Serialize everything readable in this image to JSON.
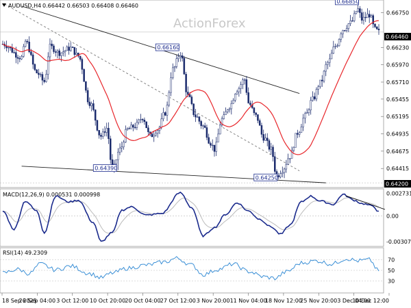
{
  "chart_data": {
    "type": "candlestick",
    "symbol_label": "AUDUSD,H4",
    "ohlc_label": "0.66442 0.66503 0.66408 0.66460",
    "watermark": "ActionForex",
    "price_axis": {
      "min": 0.6415,
      "max": 0.669,
      "ticks": [
        "0.66750",
        "0.66460",
        "0.66230",
        "0.65970",
        "0.65710",
        "0.65455",
        "0.65195",
        "0.64935",
        "0.64675",
        "0.64415",
        "0.64200"
      ]
    },
    "current_price_label": "0.66460",
    "support_label": "0.64200",
    "peak_labels": [
      {
        "text": "0.66160",
        "index": 94,
        "price": 0.6616
      },
      {
        "text": "0.66850",
        "index": 189,
        "price": 0.6685
      },
      {
        "text": "0.64390",
        "index": 61,
        "price": 0.6439
      },
      {
        "text": "0.64250",
        "index": 146,
        "price": 0.6425
      }
    ],
    "time_labels": [
      "18 Sep 2025",
      "26 Sep 04:00",
      "3 Oct 12:00",
      "10 Oct 20:00",
      "20 Oct 04:00",
      "27 Oct 12:00",
      "3 Nov 20:00",
      "11 Nov 04:00",
      "18 Nov 12:00",
      "25 Nov 20:00",
      "3 Dec 04:00",
      "10 Dec 12:00"
    ],
    "anchors": [
      [
        0,
        0.6628
      ],
      [
        10,
        0.6608
      ],
      [
        12,
        0.6632
      ],
      [
        18,
        0.6585
      ],
      [
        22,
        0.6572
      ],
      [
        25,
        0.6624
      ],
      [
        30,
        0.6615
      ],
      [
        36,
        0.6622
      ],
      [
        40,
        0.661
      ],
      [
        46,
        0.654
      ],
      [
        52,
        0.649
      ],
      [
        55,
        0.6502
      ],
      [
        58,
        0.644
      ],
      [
        62,
        0.647
      ],
      [
        66,
        0.65
      ],
      [
        70,
        0.6505
      ],
      [
        74,
        0.6518
      ],
      [
        78,
        0.649
      ],
      [
        82,
        0.65
      ],
      [
        86,
        0.6525
      ],
      [
        90,
        0.659
      ],
      [
        94,
        0.6614
      ],
      [
        98,
        0.655
      ],
      [
        102,
        0.652
      ],
      [
        106,
        0.6505
      ],
      [
        110,
        0.648
      ],
      [
        112,
        0.647
      ],
      [
        116,
        0.6515
      ],
      [
        120,
        0.6535
      ],
      [
        124,
        0.656
      ],
      [
        128,
        0.6575
      ],
      [
        130,
        0.654
      ],
      [
        134,
        0.652
      ],
      [
        138,
        0.6488
      ],
      [
        142,
        0.647
      ],
      [
        145,
        0.643
      ],
      [
        148,
        0.644
      ],
      [
        152,
        0.646
      ],
      [
        156,
        0.6495
      ],
      [
        160,
        0.652
      ],
      [
        164,
        0.6545
      ],
      [
        168,
        0.657
      ],
      [
        172,
        0.66
      ],
      [
        176,
        0.6625
      ],
      [
        180,
        0.665
      ],
      [
        184,
        0.666
      ],
      [
        188,
        0.668
      ],
      [
        190,
        0.6665
      ],
      [
        194,
        0.6672
      ],
      [
        197,
        0.665
      ],
      [
        199,
        0.6646
      ]
    ],
    "candle_count": 200,
    "ma_label": "",
    "trendlines": [
      {
        "from": [
          1,
          0.6688
        ],
        "to": [
          157,
          0.6438
        ],
        "style": "dashed"
      },
      {
        "from": [
          10,
          0.6685
        ],
        "to": [
          157,
          0.6554
        ],
        "style": "solid"
      },
      {
        "from": [
          10,
          0.6445
        ],
        "to": [
          171,
          0.642
        ],
        "style": "solid"
      }
    ],
    "macd": {
      "label": "MACD(12,26,9) 0.000531 0.000998",
      "ticks": [
        "0.002731",
        "0.00",
        "-0.003077"
      ],
      "range": [
        -0.0035,
        0.0031
      ],
      "anchors": [
        [
          0,
          0.0006
        ],
        [
          6,
          -0.0016
        ],
        [
          12,
          0.0018
        ],
        [
          18,
          0.0006
        ],
        [
          22,
          -0.002
        ],
        [
          28,
          0.0024
        ],
        [
          35,
          0.0017
        ],
        [
          40,
          0.0019
        ],
        [
          48,
          -0.0008
        ],
        [
          52,
          -0.0031
        ],
        [
          58,
          -0.002
        ],
        [
          63,
          0.0007
        ],
        [
          68,
          0.0011
        ],
        [
          76,
          0.0001
        ],
        [
          84,
          0.0003
        ],
        [
          94,
          0.0028
        ],
        [
          100,
          0.001
        ],
        [
          106,
          -0.0024
        ],
        [
          112,
          -0.0014
        ],
        [
          118,
          0.0002
        ],
        [
          124,
          0.0016
        ],
        [
          130,
          0.0006
        ],
        [
          136,
          -0.0004
        ],
        [
          142,
          -0.0013
        ],
        [
          147,
          -0.0022
        ],
        [
          152,
          -0.0011
        ],
        [
          158,
          0.0017
        ],
        [
          163,
          0.0024
        ],
        [
          168,
          0.0018
        ],
        [
          175,
          0.0014
        ],
        [
          180,
          0.0026
        ],
        [
          186,
          0.0019
        ],
        [
          190,
          0.0015
        ],
        [
          196,
          0.0012
        ],
        [
          199,
          0.0005
        ]
      ]
    },
    "rsi": {
      "label": "RSI(14) 49.2309",
      "ticks": [
        "70",
        "50",
        "30"
      ],
      "levels": [
        70,
        50,
        30
      ],
      "anchors": [
        [
          0,
          45
        ],
        [
          8,
          52
        ],
        [
          14,
          44
        ],
        [
          20,
          62
        ],
        [
          28,
          51
        ],
        [
          36,
          58
        ],
        [
          46,
          44
        ],
        [
          52,
          36
        ],
        [
          58,
          45
        ],
        [
          66,
          54
        ],
        [
          76,
          60
        ],
        [
          86,
          66
        ],
        [
          92,
          73
        ],
        [
          100,
          60
        ],
        [
          106,
          42
        ],
        [
          114,
          52
        ],
        [
          122,
          62
        ],
        [
          130,
          48
        ],
        [
          138,
          38
        ],
        [
          144,
          35
        ],
        [
          150,
          47
        ],
        [
          158,
          64
        ],
        [
          166,
          68
        ],
        [
          174,
          62
        ],
        [
          182,
          72
        ],
        [
          188,
          68
        ],
        [
          194,
          70
        ],
        [
          199,
          49
        ]
      ]
    }
  }
}
